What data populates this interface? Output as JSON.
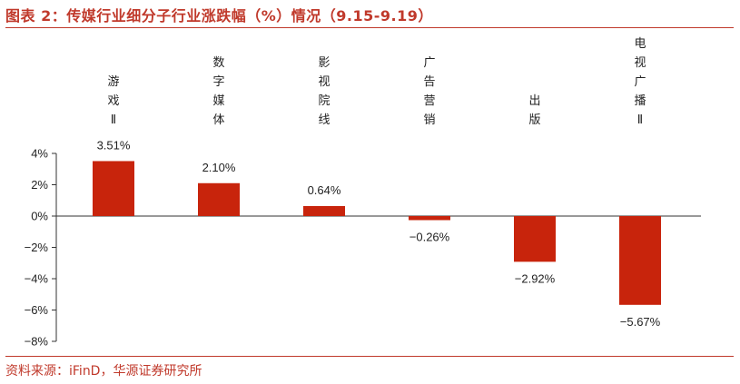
{
  "title": "图表 2：传媒行业细分子行业涨跌幅（%）情况（9.15-9.19）",
  "source": "资料来源：iFinD，华源证券研究所",
  "colors": {
    "bar": "#c8240c",
    "accent": "#c0392b",
    "axis": "#333333"
  },
  "chart_data": {
    "type": "bar",
    "categories": [
      "游戏Ⅱ",
      "数字媒体",
      "影视院线",
      "广告营销",
      "出版",
      "电视广播Ⅱ"
    ],
    "values": [
      3.51,
      2.1,
      0.64,
      -0.26,
      -2.92,
      -5.67
    ],
    "value_labels": [
      "3.51%",
      "2.10%",
      "0.64%",
      "−0.26%",
      "−2.92%",
      "−5.67%"
    ],
    "ylim": [
      -8,
      4
    ],
    "yticks": [
      4,
      2,
      0,
      -2,
      -4,
      -6,
      -8
    ],
    "ytick_labels": [
      "4%",
      "2%",
      "0%",
      "−2%",
      "−4%",
      "−6%",
      "−8%"
    ],
    "grid": false
  }
}
